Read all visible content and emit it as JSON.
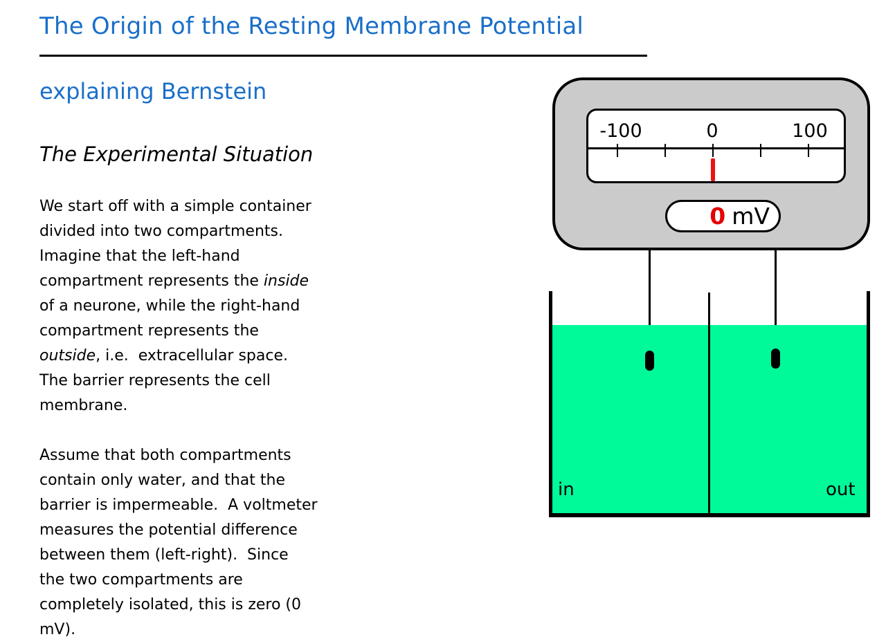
{
  "title": "The Origin of the Resting Membrane Potential",
  "subtitle": "explaining Bernstein",
  "section_heading": "The Experimental Situation",
  "paragraphs": [
    {
      "lines": [
        [
          {
            "t": "We start off with a simple container"
          }
        ],
        [
          {
            "t": "divided into two compartments."
          }
        ],
        [
          {
            "t": "Imagine that the left-hand"
          }
        ],
        [
          {
            "t": "compartment represents the "
          },
          {
            "t": "inside",
            "i": true
          }
        ],
        [
          {
            "t": "of a neurone, while the right-hand"
          }
        ],
        [
          {
            "t": "compartment represents the"
          }
        ],
        [
          {
            "t": "outside",
            "i": true
          },
          {
            "t": ", i.e.  extracellular space."
          }
        ],
        [
          {
            "t": "The barrier represents the cell"
          }
        ],
        [
          {
            "t": "membrane."
          }
        ]
      ]
    },
    {
      "lines": [
        [
          {
            "t": "Assume that both compartments"
          }
        ],
        [
          {
            "t": "contain only water, and that the"
          }
        ],
        [
          {
            "t": "barrier is impermeable.  A voltmeter"
          }
        ],
        [
          {
            "t": "measures the potential difference"
          }
        ],
        [
          {
            "t": "between them (left-right).  Since"
          }
        ],
        [
          {
            "t": "the two compartments are"
          }
        ],
        [
          {
            "t": "completely isolated, this is zero (0"
          }
        ],
        [
          {
            "t": "mV)."
          }
        ]
      ]
    }
  ],
  "diagram": {
    "voltmeter": {
      "scale_tick_labels": [
        "-100",
        "0",
        "100"
      ],
      "needle_value": 0,
      "reading_value": "0",
      "reading_unit": "mV"
    },
    "beaker": {
      "left_compartment_label": "in",
      "right_compartment_label": "out"
    }
  },
  "colors": {
    "accent_blue": "#1a6fc9",
    "meter_gray": "#cbcbcb",
    "needle_red": "#ee1111",
    "reading_red": "#e60000",
    "liquid_green": "#00fa9a"
  }
}
